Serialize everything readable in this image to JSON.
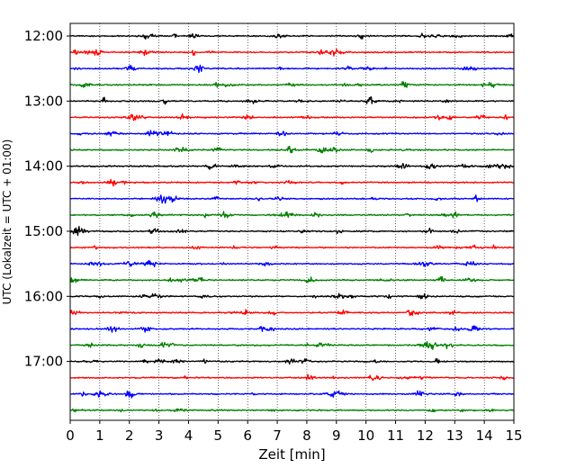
{
  "chart_data": {
    "type": "line",
    "title": "",
    "xlabel": "Zeit  [min]",
    "ylabel": "UTC (Lokalzeit = UTC + 01:00)",
    "xlim": [
      0,
      15
    ],
    "x_ticks": [
      "0",
      "1",
      "2",
      "3",
      "4",
      "5",
      "6",
      "7",
      "8",
      "9",
      "10",
      "11",
      "12",
      "13",
      "14",
      "15"
    ],
    "y_tick_labels": [
      "12:00",
      "13:00",
      "14:00",
      "15:00",
      "16:00",
      "17:00"
    ],
    "grid": "vertical dotted lines at each minute",
    "trace_colors": [
      "#000000",
      "#ff0000",
      "#0000ff",
      "#008000"
    ],
    "series": [
      {
        "start": "12:00",
        "color": "#000000"
      },
      {
        "start": "12:15",
        "color": "#ff0000"
      },
      {
        "start": "12:30",
        "color": "#0000ff"
      },
      {
        "start": "12:45",
        "color": "#008000"
      },
      {
        "start": "13:00",
        "color": "#000000"
      },
      {
        "start": "13:15",
        "color": "#ff0000"
      },
      {
        "start": "13:30",
        "color": "#0000ff"
      },
      {
        "start": "13:45",
        "color": "#008000"
      },
      {
        "start": "14:00",
        "color": "#000000"
      },
      {
        "start": "14:15",
        "color": "#ff0000"
      },
      {
        "start": "14:30",
        "color": "#0000ff"
      },
      {
        "start": "14:45",
        "color": "#008000"
      },
      {
        "start": "15:00",
        "color": "#000000"
      },
      {
        "start": "15:15",
        "color": "#ff0000"
      },
      {
        "start": "15:30",
        "color": "#0000ff"
      },
      {
        "start": "15:45",
        "color": "#008000"
      },
      {
        "start": "16:00",
        "color": "#000000"
      },
      {
        "start": "16:15",
        "color": "#ff0000"
      },
      {
        "start": "16:30",
        "color": "#0000ff"
      },
      {
        "start": "16:45",
        "color": "#008000"
      },
      {
        "start": "17:00",
        "color": "#000000"
      },
      {
        "start": "17:15",
        "color": "#ff0000"
      },
      {
        "start": "17:30",
        "color": "#0000ff"
      },
      {
        "start": "17:45",
        "color": "#008000"
      }
    ]
  }
}
